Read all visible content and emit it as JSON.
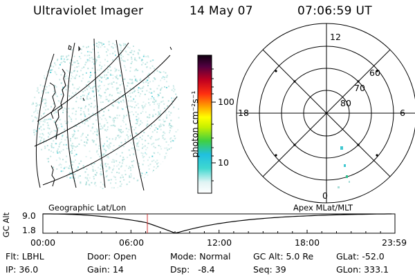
{
  "header": {
    "instrument": "Ultraviolet Imager",
    "date": "14 May 07",
    "time": "07:06:59 UT"
  },
  "colorbar": {
    "label": "photon cm⁻²s⁻¹",
    "ticks": [
      "100",
      "10"
    ]
  },
  "polar": {
    "mlt_labels": {
      "top": "12",
      "left": "18",
      "right": "6",
      "bottom": "0"
    },
    "lat_labels": [
      "60",
      "70",
      "80"
    ]
  },
  "timeline": {
    "left_title": "Geographic Lat/Lon",
    "right_title": "Apex MLat/MLT",
    "ylabel": "GC Alt",
    "y_ticks": [
      "9.0",
      "1.8"
    ],
    "x_ticks": [
      "00:00",
      "06:00",
      "12:00",
      "18:00",
      "23:59"
    ],
    "current_time_hours": 7.116,
    "ymin": 1.8,
    "ymax": 9.0
  },
  "status": {
    "flt": "Flt: LBHL",
    "ip": "IP: 36.0",
    "door": "Door: Open",
    "gain": "Gain: 14",
    "mode": "Mode: Normal",
    "dsp": "Dsp:   -8.4",
    "gcalt": "GC Alt: 5.0 Re",
    "seq": "Seq: 39",
    "glat": "GLat: -52.0",
    "glon": "GLon: 333.1"
  },
  "colors": {
    "noise": "#a8dcd8",
    "noise_bright": "#40c8d0",
    "marker": "#d03030"
  }
}
